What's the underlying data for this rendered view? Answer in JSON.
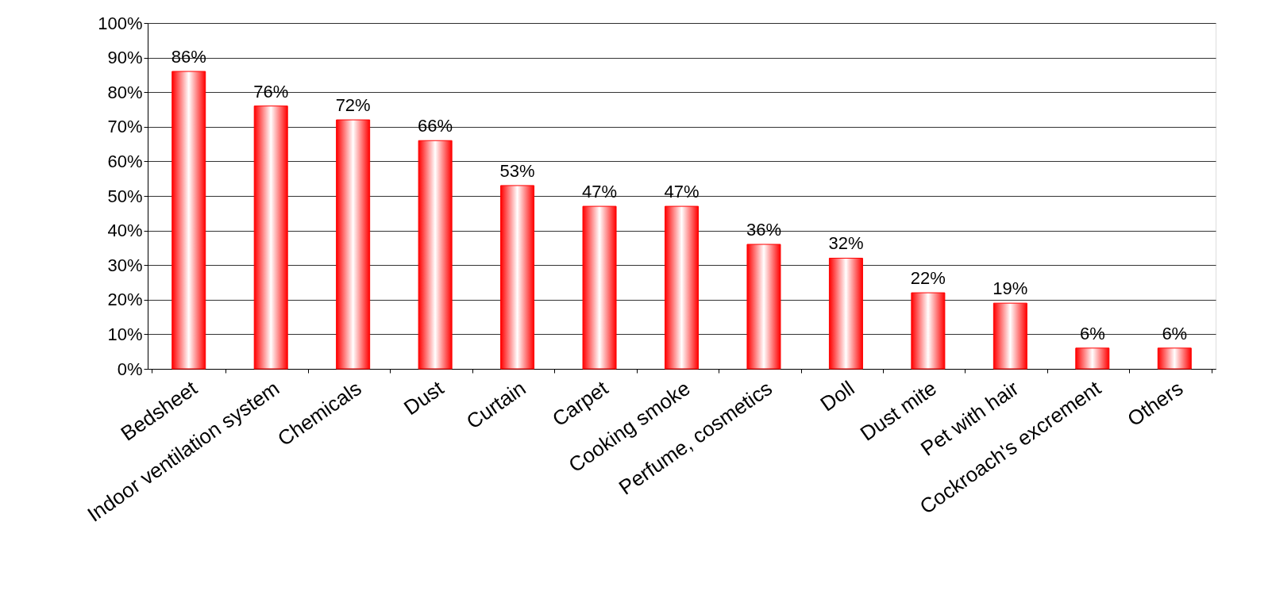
{
  "chart_data": {
    "type": "bar",
    "categories": [
      "Bedsheet",
      "Indoor ventilation system",
      "Chemicals",
      "Dust",
      "Curtain",
      "Carpet",
      "Cooking smoke",
      "Perfume, cosmetics",
      "Doll",
      "Dust mite",
      "Pet with hair",
      "Cockroach's excrement",
      "Others"
    ],
    "values": [
      86,
      76,
      72,
      66,
      53,
      47,
      47,
      36,
      32,
      22,
      19,
      6,
      6
    ],
    "value_labels": [
      "86%",
      "76%",
      "72%",
      "66%",
      "53%",
      "47%",
      "47%",
      "36%",
      "32%",
      "22%",
      "19%",
      "6%",
      "6%"
    ],
    "color": "#ff0000",
    "ylim": [
      0,
      100
    ],
    "yticks": [
      {
        "value": 0,
        "label": "0%"
      },
      {
        "value": 10,
        "label": "10%"
      },
      {
        "value": 20,
        "label": "20%"
      },
      {
        "value": 30,
        "label": "30%"
      },
      {
        "value": 40,
        "label": "40%"
      },
      {
        "value": 50,
        "label": "50%"
      },
      {
        "value": 60,
        "label": "60%"
      },
      {
        "value": 70,
        "label": "70%"
      },
      {
        "value": 80,
        "label": "80%"
      },
      {
        "value": 90,
        "label": "90%"
      },
      {
        "value": 100,
        "label": "100%"
      }
    ],
    "grid": "y"
  }
}
